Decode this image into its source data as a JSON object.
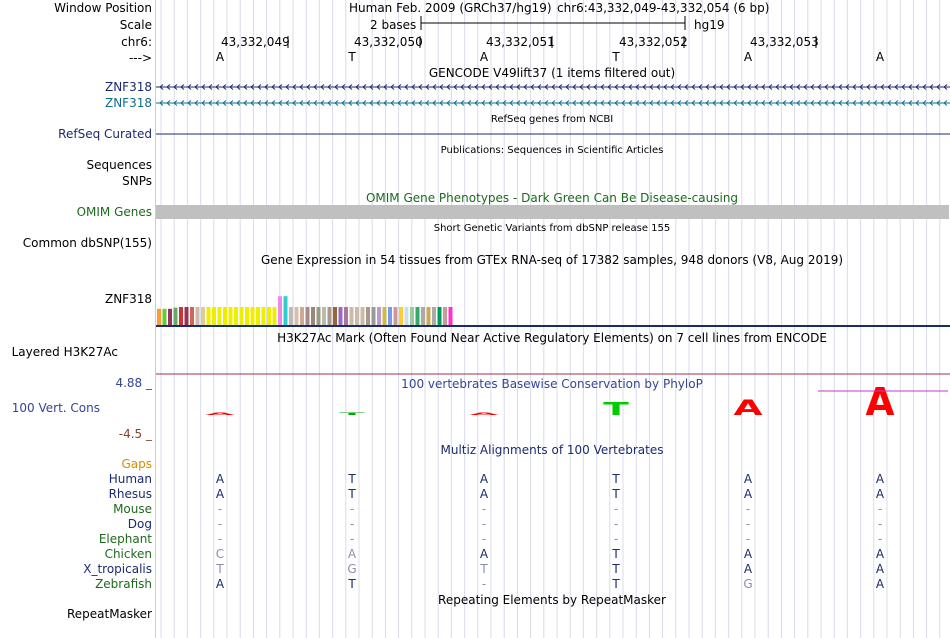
{
  "ruler": {
    "window_label": "Window Position",
    "scale_label": "Scale",
    "chr_label": "chr6:",
    "dir_label": "--->",
    "assembly": "Human Feb. 2009 (GRCh37/hg19)",
    "position": "chr6:43,332,049-43,332,054 (6 bp)",
    "scale_text": "2 bases",
    "db": "hg19",
    "positions": [
      "43,332,049",
      "43,332,050",
      "43,332,051",
      "43,332,052",
      "43,332,053"
    ],
    "sequence": [
      "A",
      "T",
      "A",
      "T",
      "A",
      "A"
    ]
  },
  "tracks": {
    "gencode": {
      "title": "GENCODE V49lift37 (1 items filtered out)",
      "genes": [
        "ZNF318",
        "ZNF318"
      ]
    },
    "refseq": {
      "title": "RefSeq genes from NCBI",
      "label": "RefSeq Curated"
    },
    "publications": {
      "title": "Publications: Sequences in Scientific Articles",
      "label1": "Sequences",
      "label2": "SNPs"
    },
    "omim": {
      "title": "OMIM Gene Phenotypes - Dark Green Can Be Disease-causing",
      "label": "OMIM Genes",
      "bar_color": "#c0c0c0"
    },
    "dbsnp": {
      "title": "Short Genetic Variants from dbSNP release 155",
      "label": "Common dbSNP(155)"
    },
    "gtex": {
      "title": "Gene Expression in 54 tissues from GTEx RNA-seq of 17382 samples, 948 donors (V8, Aug 2019)",
      "label": "ZNF318"
    },
    "h3k27ac": {
      "title": "H3K27Ac Mark (Often Found Near Active Regulatory Elements) on 7 cell lines from ENCODE",
      "label": "Layered H3K27Ac"
    },
    "phylop": {
      "title": "100 vertebrates Basewise Conservation by PhyloP",
      "label": "100 Vert. Cons",
      "max_label": "4.88 _",
      "min_label": "-4.5 _"
    },
    "multiz": {
      "title": "Multiz Alignments of 100 Vertebrates",
      "gaps_label": "Gaps"
    },
    "repeatmasker": {
      "title": "Repeating Elements by RepeatMasker",
      "label": "RepeatMasker"
    }
  },
  "species": [
    {
      "name": "Human",
      "color": "#1a2a70",
      "bases": [
        "A",
        "T",
        "A",
        "T",
        "A",
        "A"
      ],
      "faint": [
        false,
        false,
        false,
        false,
        false,
        false
      ]
    },
    {
      "name": "Rhesus",
      "color": "#1a2a70",
      "bases": [
        "A",
        "T",
        "A",
        "T",
        "A",
        "A"
      ],
      "faint": [
        false,
        false,
        false,
        false,
        false,
        false
      ]
    },
    {
      "name": "Mouse",
      "color": "#1d6a1d",
      "bases": [
        "-",
        "-",
        "-",
        "-",
        "-",
        "-"
      ],
      "faint": [
        true,
        true,
        true,
        true,
        true,
        true
      ]
    },
    {
      "name": "Dog",
      "color": "#1a2a70",
      "bases": [
        "-",
        "-",
        "-",
        "-",
        "-",
        "-"
      ],
      "faint": [
        true,
        true,
        true,
        true,
        true,
        true
      ]
    },
    {
      "name": "Elephant",
      "color": "#1d6a1d",
      "bases": [
        "-",
        "-",
        "-",
        "-",
        "-",
        "-"
      ],
      "faint": [
        true,
        true,
        true,
        true,
        true,
        true
      ]
    },
    {
      "name": "Chicken",
      "color": "#1d6a1d",
      "bases": [
        "C",
        "A",
        "A",
        "T",
        "A",
        "A"
      ],
      "faint": [
        true,
        true,
        false,
        false,
        false,
        false
      ]
    },
    {
      "name": "X_tropicalis",
      "color": "#1a2a70",
      "bases": [
        "T",
        "G",
        "T",
        "T",
        "A",
        "A"
      ],
      "faint": [
        true,
        true,
        true,
        false,
        false,
        false
      ]
    },
    {
      "name": "Zebrafish",
      "color": "#1d6a1d",
      "bases": [
        "A",
        "T",
        "-",
        "T",
        "G",
        "A"
      ],
      "faint": [
        false,
        false,
        true,
        false,
        true,
        false
      ]
    }
  ],
  "chart_data": [
    {
      "type": "bar",
      "title": "Gene Expression in 54 tissues from GTEx RNA-seq of 17382 samples, 948 donors (V8, Aug 2019)",
      "series_label": "ZNF318",
      "values": [
        10,
        10,
        10,
        10,
        10,
        10,
        10,
        10,
        10,
        10,
        10,
        10,
        10,
        10,
        10,
        10,
        10,
        10,
        10,
        10,
        10,
        10,
        10,
        10,
        10,
        10,
        10,
        10,
        10,
        10,
        10,
        10,
        10,
        10,
        10,
        10,
        10,
        10,
        10,
        10,
        10,
        10,
        10,
        10,
        10,
        10,
        10,
        10,
        10,
        10,
        10,
        10,
        10,
        10
      ],
      "colors": [
        "#ff9933",
        "#66cc33",
        "#993366",
        "#66aa66",
        "#cc3333",
        "#993355",
        "#cc6655",
        "#ccbbaa",
        "#ddcc99",
        "#eeee00",
        "#eeee00",
        "#eeee00",
        "#eeee00",
        "#eeee00",
        "#eeee00",
        "#eeee00",
        "#eeee00",
        "#eeee00",
        "#eeee00",
        "#eeee00",
        "#eeee00",
        "#eeee00",
        "#ee88ee",
        "#33cccc",
        "#bbbbbb",
        "#ddbbaa",
        "#ccaa99",
        "#aa8888",
        "#998877",
        "#999988",
        "#bbbbaa",
        "#aa9988",
        "#996633",
        "#9966cc",
        "#aa7799",
        "#ccbbaa",
        "#ccbbaa",
        "#ccbbaa",
        "#aa9988",
        "#999999",
        "#bb99cc",
        "#ccbb44",
        "#7799ee",
        "#cc9999",
        "#ffcc33",
        "#ccddee",
        "#99cc99",
        "#33aa66",
        "#aaaaaa",
        "#ccaa55",
        "#aaaaaa",
        "#009955",
        "#cc9999",
        "#ff33cc"
      ],
      "heights": [
        0.27,
        0.27,
        0.27,
        0.29,
        0.3,
        0.3,
        0.3,
        0.3,
        0.3,
        0.3,
        0.3,
        0.3,
        0.3,
        0.3,
        0.3,
        0.3,
        0.3,
        0.3,
        0.3,
        0.3,
        0.3,
        0.3,
        0.48,
        0.48,
        0.3,
        0.3,
        0.3,
        0.3,
        0.3,
        0.3,
        0.3,
        0.3,
        0.3,
        0.3,
        0.3,
        0.3,
        0.3,
        0.3,
        0.3,
        0.3,
        0.3,
        0.3,
        0.3,
        0.3,
        0.3,
        0.3,
        0.3,
        0.3,
        0.3,
        0.3,
        0.3,
        0.3,
        0.3,
        0.3
      ]
    },
    {
      "type": "bar",
      "title": "100 vertebrates Basewise Conservation by PhyloP",
      "categories": [
        "A",
        "T",
        "A",
        "T",
        "A",
        "A"
      ],
      "values": [
        0.05,
        0.1,
        0.2,
        1.9,
        2.2,
        4.0
      ],
      "ylim": [
        -4.5,
        4.88
      ],
      "colors": [
        "#ff0000",
        "#00aa00",
        "#ff0000",
        "#00cc00",
        "#ff0000",
        "#ff0000"
      ]
    }
  ]
}
